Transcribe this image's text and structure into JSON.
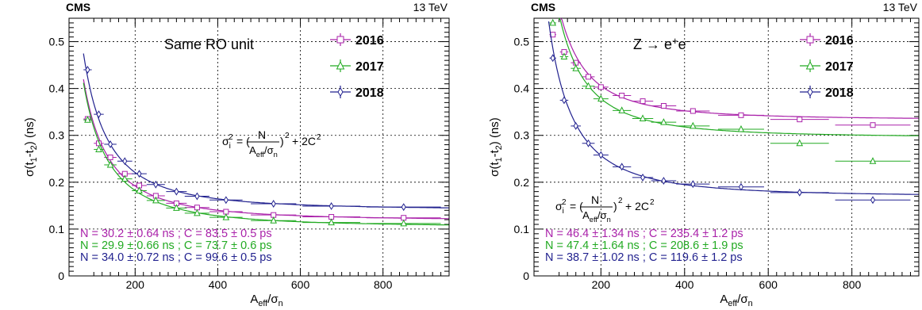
{
  "chart_data": [
    {
      "type": "scatter",
      "experiment": "CMS",
      "energy": "13 TeV",
      "annotation": "Same RO unit",
      "xlabel": "A_eff/σ_n",
      "ylabel": "σ(t_1-t_2) (ns)",
      "xlim": [
        40,
        960
      ],
      "ylim": [
        0,
        0.55
      ],
      "xticks": [
        200,
        400,
        600,
        800
      ],
      "yticks": [
        0,
        0.1,
        0.2,
        0.3,
        0.4,
        0.5
      ],
      "grid": true,
      "legend_position": "top-right",
      "formula": {
        "text": "σ_i² = (N / (A_eff/σ_n))² + 2C²"
      },
      "series": [
        {
          "name": "2016",
          "color": "#aa22aa",
          "marker": "square",
          "x": [
            85,
            112,
            140,
            175,
            210,
            250,
            300,
            350,
            420,
            535,
            675,
            850
          ],
          "y": [
            0.335,
            0.283,
            0.253,
            0.218,
            0.193,
            0.171,
            0.155,
            0.146,
            0.137,
            0.13,
            0.126,
            0.124
          ],
          "xerr": [
            10,
            12,
            15,
            18,
            18,
            22,
            25,
            30,
            40,
            55,
            70,
            90
          ],
          "fit_label": "N = 30.2 ± 0.64 ns ; C = 83.5 ± 0.5 ps",
          "fit": {
            "N": 30.2,
            "C": 0.0835
          }
        },
        {
          "name": "2017",
          "color": "#22aa22",
          "marker": "triangle",
          "x": [
            85,
            112,
            140,
            175,
            210,
            250,
            300,
            350,
            420,
            535,
            675,
            850
          ],
          "y": [
            0.333,
            0.27,
            0.237,
            0.207,
            0.182,
            0.161,
            0.145,
            0.134,
            0.125,
            0.118,
            0.114,
            0.112
          ],
          "xerr": [
            10,
            12,
            15,
            18,
            18,
            22,
            25,
            30,
            40,
            55,
            70,
            90
          ],
          "fit_label": "N = 29.9 ± 0.66 ns ; C = 73.7 ± 0.6 ps",
          "fit": {
            "N": 29.9,
            "C": 0.0737
          }
        },
        {
          "name": "2018",
          "color": "#22228f",
          "marker": "diamond",
          "x": [
            85,
            112,
            140,
            175,
            210,
            250,
            300,
            350,
            420,
            535,
            675,
            850
          ],
          "y": [
            0.44,
            0.345,
            0.281,
            0.245,
            0.218,
            0.195,
            0.18,
            0.17,
            0.162,
            0.154,
            0.149,
            0.147
          ],
          "xerr": [
            10,
            12,
            15,
            18,
            18,
            22,
            25,
            30,
            40,
            55,
            70,
            90
          ],
          "fit_label": "N = 34.0 ± 0.72 ns ; C = 99.6 ± 0.5 ps",
          "fit": {
            "N": 34.0,
            "C": 0.0996
          }
        }
      ]
    },
    {
      "type": "scatter",
      "experiment": "CMS",
      "energy": "13 TeV",
      "annotation": "Z → e⁺e⁻",
      "xlabel": "A_eff/σ_n",
      "ylabel": "σ(t_1-t_2) (ns)",
      "xlim": [
        40,
        960
      ],
      "ylim": [
        0,
        0.55
      ],
      "xticks": [
        200,
        400,
        600,
        800
      ],
      "yticks": [
        0,
        0.1,
        0.2,
        0.3,
        0.4,
        0.5
      ],
      "grid": true,
      "legend_position": "top-right",
      "formula": {
        "text": "σ_i² = (N / (A_eff/σ_n))² + 2C²"
      },
      "series": [
        {
          "name": "2016",
          "color": "#aa22aa",
          "marker": "square",
          "x": [
            85,
            112,
            140,
            170,
            200,
            250,
            300,
            350,
            420,
            535,
            675,
            850
          ],
          "y": [
            0.515,
            0.478,
            0.455,
            0.425,
            0.403,
            0.385,
            0.373,
            0.363,
            0.352,
            0.343,
            0.334,
            0.322
          ],
          "xerr": [
            8,
            10,
            12,
            15,
            18,
            22,
            25,
            30,
            40,
            55,
            70,
            90
          ],
          "fit_label": "N = 46.4 ± 1.34 ns ;  C = 235.4 ± 1.2 ps",
          "fit": {
            "N": 46.4,
            "C": 0.2354
          }
        },
        {
          "name": "2017",
          "color": "#22aa22",
          "marker": "triangle",
          "x": [
            85,
            112,
            140,
            170,
            200,
            250,
            300,
            350,
            420,
            535,
            675,
            850
          ],
          "y": [
            0.54,
            0.468,
            0.443,
            0.405,
            0.378,
            0.353,
            0.336,
            0.328,
            0.32,
            0.313,
            0.283,
            0.245
          ],
          "xerr": [
            8,
            10,
            12,
            15,
            18,
            22,
            25,
            30,
            40,
            55,
            70,
            90
          ],
          "fit_label": "N = 47.4 ± 1.64 ns ;  C = 208.6 ± 1.9 ps",
          "fit": {
            "N": 47.4,
            "C": 0.2086
          }
        },
        {
          "name": "2018",
          "color": "#22228f",
          "marker": "diamond",
          "x": [
            85,
            112,
            140,
            170,
            200,
            250,
            300,
            350,
            420,
            535,
            675,
            850
          ],
          "y": [
            0.465,
            0.375,
            0.32,
            0.283,
            0.258,
            0.233,
            0.21,
            0.203,
            0.196,
            0.19,
            0.178,
            0.162
          ],
          "xerr": [
            8,
            10,
            12,
            15,
            18,
            22,
            25,
            30,
            40,
            55,
            70,
            90
          ],
          "fit_label": "N = 38.7 ± 1.02 ns ;  C = 119.6 ± 1.2 ps",
          "fit": {
            "N": 38.7,
            "C": 0.1196
          }
        }
      ]
    }
  ]
}
